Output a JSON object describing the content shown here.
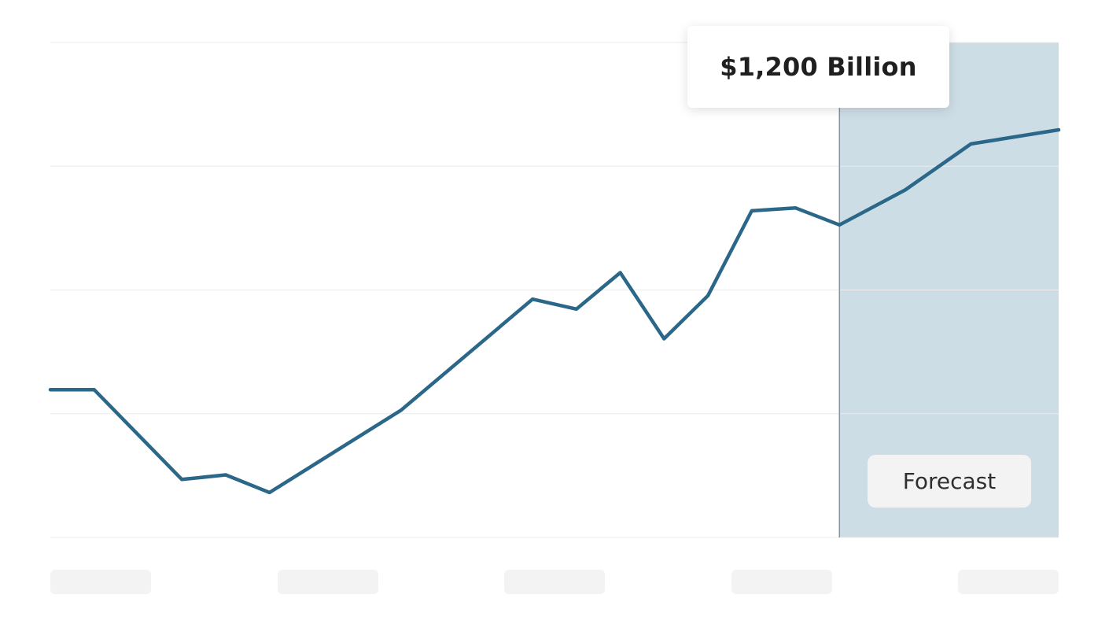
{
  "tooltip": {
    "value_label": "$1,200 Billion"
  },
  "forecast": {
    "label": "Forecast"
  },
  "colors": {
    "line": "#2b6788",
    "forecast_region": "#cddde5",
    "forecast_divider": "#7f96a3",
    "gridline": "#ececec",
    "placeholder": "#f3f3f3"
  },
  "chart_data": {
    "type": "line",
    "title": "",
    "xlabel": "",
    "ylabel": "",
    "xlim": [
      0,
      23
    ],
    "ylim": [
      0,
      1400
    ],
    "gridlines": [
      0,
      350,
      700,
      1050,
      1400
    ],
    "x_tick_count": 5,
    "forecast_start_x": 18,
    "series": [
      {
        "x": [
          0,
          1,
          3,
          4,
          5,
          8,
          11,
          12,
          13,
          14,
          15,
          16,
          17,
          18,
          19.5,
          21,
          23
        ],
        "values": [
          418,
          418,
          164,
          177,
          127,
          360,
          674,
          646,
          749,
          562,
          684,
          924,
          932,
          884,
          983,
          1113,
          1153
        ]
      }
    ]
  }
}
